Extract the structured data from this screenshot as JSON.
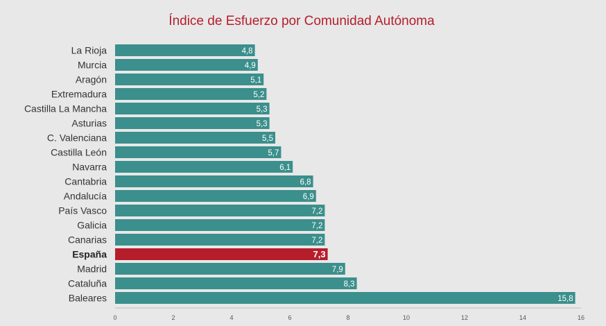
{
  "chart_data": {
    "type": "bar",
    "orientation": "horizontal",
    "title": "Índice de Esfuerzo por Comunidad Autónoma",
    "categories": [
      "La Rioja",
      "Murcia",
      "Aragón",
      "Extremadura",
      "Castilla La Mancha",
      "Asturias",
      "C. Valenciana",
      "Castilla León",
      "Navarra",
      "Cantabria",
      "Andalucía",
      "País Vasco",
      "Galicia",
      "Canarias",
      "España",
      "Madrid",
      "Cataluña",
      "Baleares"
    ],
    "values": [
      4.8,
      4.9,
      5.1,
      5.2,
      5.3,
      5.3,
      5.5,
      5.7,
      6.1,
      6.8,
      6.9,
      7.2,
      7.2,
      7.2,
      7.3,
      7.9,
      8.3,
      15.8
    ],
    "value_labels": [
      "4,8",
      "4,9",
      "5,1",
      "5,2",
      "5,3",
      "5,3",
      "5,5",
      "5,7",
      "6,1",
      "6,8",
      "6,9",
      "7,2",
      "7,2",
      "7,2",
      "7,3",
      "7,9",
      "8,3",
      "15,8"
    ],
    "highlight": "España",
    "xlim": [
      0,
      16
    ],
    "xticks": [
      "0",
      "2",
      "4",
      "6",
      "8",
      "10",
      "12",
      "14",
      "16"
    ],
    "xlabel": "",
    "ylabel": "",
    "grid": false,
    "legend": "none",
    "colors": {
      "bar": "#3b8f8c",
      "highlight": "#b61d2b",
      "title": "#b61d2b",
      "background": "#e8e8e8"
    }
  }
}
